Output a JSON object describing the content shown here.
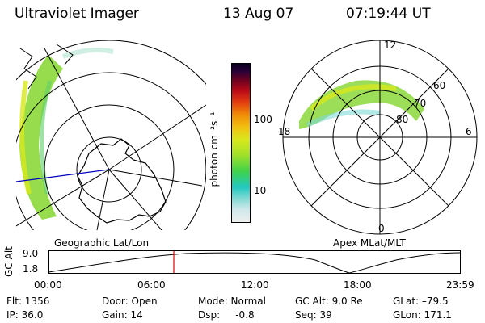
{
  "header": {
    "instrument": "Ultraviolet Imager",
    "date": "13 Aug 07",
    "time": "07:19:44 UT"
  },
  "colorbar": {
    "label": "photon cm⁻²s⁻¹",
    "ticks": [
      "100",
      "10"
    ],
    "colors": [
      "#eeeeee",
      "#cfe8ea",
      "#7fd9d4",
      "#22c8c0",
      "#3fd24a",
      "#9fe02a",
      "#d8e81c",
      "#f2c010",
      "#f08a08",
      "#e23a10",
      "#b80a18",
      "#6a0020",
      "#2a0038",
      "#0a0020"
    ]
  },
  "left_map": {
    "caption": "Geographic Lat/Lon",
    "aurora_color": "#8bd83a"
  },
  "right_map": {
    "caption": "Apex MLat/MLT",
    "mlt_labels": {
      "top": "12",
      "bottom": "0",
      "left": "18",
      "right": "6"
    },
    "mlat_labels": [
      "60",
      "70",
      "80"
    ]
  },
  "altitude_plot": {
    "ylabel": "GC Alt",
    "yticks": [
      "9.0",
      "1.8"
    ],
    "xticks": [
      "00:00",
      "06:00",
      "12:00",
      "18:00",
      "23:59"
    ],
    "marker_color": "#e00000",
    "marker_time": "07:19:44"
  },
  "status": {
    "flt": "Flt: 1356",
    "ip": "IP: 36.0",
    "door": "Door: Open",
    "gain": "Gain: 14",
    "mode": "Mode: Normal",
    "dsp": "Dsp:     -0.8",
    "gc_alt": "GC Alt: 9.0 Re",
    "seq": "Seq: 39",
    "glat": "GLat: –79.5",
    "glon": "GLon: 171.1"
  }
}
